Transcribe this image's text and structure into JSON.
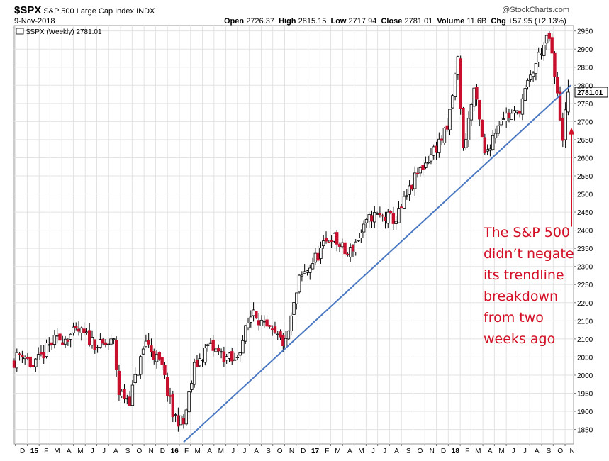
{
  "header": {
    "symbol": "$SPX",
    "name": "S&P 500 Large Cap Index",
    "exchange": "INDX",
    "date": "9-Nov-2018",
    "watermark": "@StockCharts.com",
    "open_label": "Open",
    "open": "2726.37",
    "high_label": "High",
    "high": "2815.15",
    "low_label": "Low",
    "low": "2717.94",
    "close_label": "Close",
    "close": "2781.01",
    "volume_label": "Volume",
    "volume": "11.6B",
    "chg_label": "Chg",
    "chg": "+57.95 (+2.13%)",
    "legend": "$SPX (Weekly) 2781.01"
  },
  "chart_data": {
    "type": "candlestick",
    "title": "$SPX S&P 500 Large Cap Index INDX",
    "series_label": "$SPX (Weekly) 2781.01",
    "interval": "weekly",
    "x_range": [
      "2014-11-28",
      "2018-11-09"
    ],
    "ylim": [
      1810,
      2965
    ],
    "y_ticks": [
      1850,
      1900,
      1950,
      2000,
      2050,
      2100,
      2150,
      2200,
      2250,
      2300,
      2350,
      2400,
      2450,
      2500,
      2550,
      2600,
      2650,
      2700,
      2750,
      2800,
      2850,
      2900,
      2950
    ],
    "x_tick_labels": [
      "D",
      "15",
      "F",
      "M",
      "A",
      "M",
      "J",
      "J",
      "A",
      "S",
      "O",
      "N",
      "D",
      "16",
      "F",
      "M",
      "A",
      "M",
      "J",
      "J",
      "A",
      "S",
      "O",
      "N",
      "D",
      "17",
      "F",
      "M",
      "A",
      "M",
      "J",
      "J",
      "A",
      "S",
      "O",
      "N",
      "D",
      "18",
      "F",
      "M",
      "A",
      "M",
      "J",
      "J",
      "A",
      "S",
      "O",
      "N"
    ],
    "last_price_tag": "2781.01",
    "grid": true,
    "up_color": "#ffffff",
    "down_color": "#c8102e",
    "trendline": {
      "color": "#4a78c2",
      "from": {
        "date": "2016-02-12",
        "value": 1815
      },
      "to": {
        "date": "2018-11-16",
        "value": 2800
      }
    },
    "arrow": {
      "color": "#d31027",
      "from_value": 2410,
      "to_value": 2680
    },
    "annotation_lines": [
      "The S&P 500",
      "didn’t negate",
      "its trendline",
      "breakdown",
      "from two",
      "weeks ago"
    ],
    "anchors": [
      [
        "2014-11-28",
        2040
      ],
      [
        "2014-12-19",
        2065
      ],
      [
        "2015-01-16",
        2020
      ],
      [
        "2015-03-06",
        2090
      ],
      [
        "2015-05-15",
        2120
      ],
      [
        "2015-07-10",
        2080
      ],
      [
        "2015-08-14",
        2090
      ],
      [
        "2015-08-28",
        1950
      ],
      [
        "2015-09-25",
        1935
      ],
      [
        "2015-11-06",
        2095
      ],
      [
        "2015-12-18",
        2020
      ],
      [
        "2016-01-15",
        1890
      ],
      [
        "2016-02-12",
        1865
      ],
      [
        "2016-03-11",
        2020
      ],
      [
        "2016-04-15",
        2080
      ],
      [
        "2016-06-24",
        2035
      ],
      [
        "2016-08-12",
        2185
      ],
      [
        "2016-09-09",
        2130
      ],
      [
        "2016-11-04",
        2085
      ],
      [
        "2016-12-09",
        2260
      ],
      [
        "2017-03-03",
        2385
      ],
      [
        "2017-04-14",
        2330
      ],
      [
        "2017-06-16",
        2440
      ],
      [
        "2017-08-18",
        2430
      ],
      [
        "2017-10-13",
        2555
      ],
      [
        "2017-12-29",
        2675
      ],
      [
        "2018-01-26",
        2872
      ],
      [
        "2018-02-09",
        2620
      ],
      [
        "2018-03-09",
        2790
      ],
      [
        "2018-04-06",
        2605
      ],
      [
        "2018-05-18",
        2715
      ],
      [
        "2018-06-29",
        2720
      ],
      [
        "2018-08-31",
        2900
      ],
      [
        "2018-09-21",
        2930
      ],
      [
        "2018-10-26",
        2660
      ],
      [
        "2018-11-09",
        2781
      ]
    ]
  }
}
